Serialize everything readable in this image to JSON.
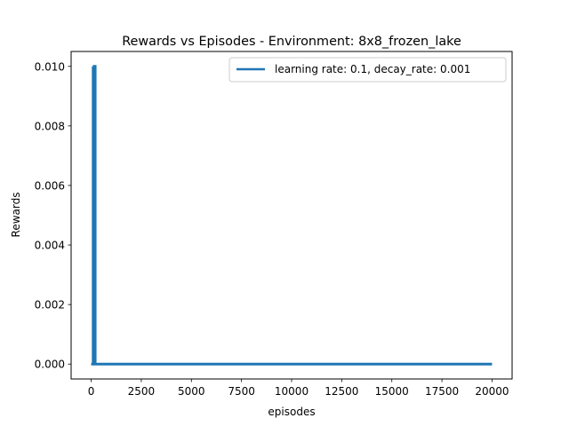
{
  "chart_data": {
    "type": "line",
    "title": "Rewards vs Episodes - Environment: 8x8_frozen_lake",
    "xlabel": "episodes",
    "ylabel": "Rewards",
    "xlim": [
      -1000,
      21000
    ],
    "ylim": [
      -0.0005,
      0.0105
    ],
    "x_ticks": [
      0,
      2500,
      5000,
      7500,
      10000,
      12500,
      15000,
      17500,
      20000
    ],
    "x_tick_labels": [
      "0",
      "2500",
      "5000",
      "7500",
      "10000",
      "12500",
      "15000",
      "17500",
      "20000"
    ],
    "y_ticks": [
      0.0,
      0.002,
      0.004,
      0.006,
      0.008,
      0.01
    ],
    "y_tick_labels": [
      "0.000",
      "0.002",
      "0.004",
      "0.006",
      "0.008",
      "0.010"
    ],
    "grid": false,
    "legend_position": "top-right",
    "series": [
      {
        "name": "learning rate: 0.1, decay_rate: 0.001",
        "color": "#1f77b4",
        "x": [
          0,
          100,
          100,
          100,
          150,
          150,
          200,
          200,
          20000
        ],
        "y": [
          0,
          0,
          0.01,
          0,
          0,
          0.01,
          0.01,
          0,
          0
        ]
      }
    ]
  }
}
